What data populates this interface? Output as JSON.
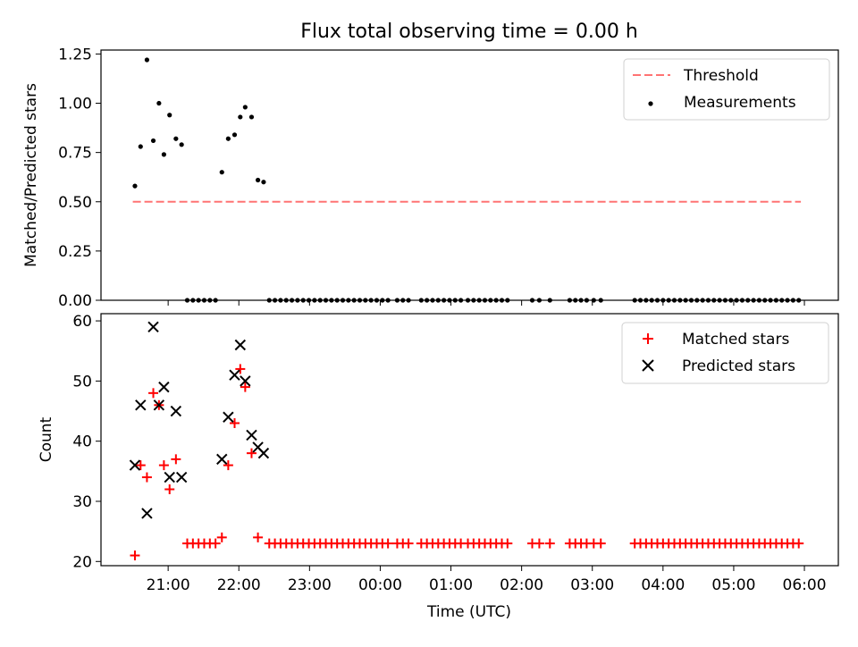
{
  "chart_data": [
    {
      "type": "scatter",
      "title": "Flux total observing time = 0.00 h",
      "xlabel": "",
      "ylabel": "Matched/Predicted stars",
      "ylim": [
        0,
        1.27
      ],
      "yticks": [
        "0.00",
        "0.25",
        "0.50",
        "0.75",
        "1.00",
        "1.25"
      ],
      "ytick_values": [
        0,
        0.25,
        0.5,
        0.75,
        1.0,
        1.25
      ],
      "threshold": {
        "name": "Threshold",
        "value": 0.5,
        "x_start": 20.5,
        "x_end": 29.95,
        "color": "#ff7373"
      },
      "series": [
        {
          "name": "Measurements",
          "color": "#000000",
          "x": [
            20.53,
            20.61,
            20.7,
            20.79,
            20.87,
            20.94,
            21.02,
            21.11,
            21.19,
            21.76,
            21.85,
            21.94,
            22.02,
            22.09,
            22.18,
            22.27,
            22.35
          ],
          "y": [
            0.58,
            0.78,
            1.22,
            0.81,
            1.0,
            0.74,
            0.94,
            0.82,
            0.79,
            0.65,
            0.82,
            0.84,
            0.93,
            0.98,
            0.93,
            0.61,
            0.6
          ]
        }
      ],
      "legend": [
        "Threshold",
        "Measurements"
      ],
      "legend_position": "top-right"
    },
    {
      "type": "scatter",
      "title": "",
      "xlabel": "Time (UTC)",
      "ylabel": "Count",
      "ylim": [
        19.3,
        61.2
      ],
      "yticks": [
        "20",
        "30",
        "40",
        "50",
        "60"
      ],
      "ytick_values": [
        20,
        30,
        40,
        50,
        60
      ],
      "series": [
        {
          "name": "Matched stars",
          "marker": "+",
          "color": "#ff0000",
          "x": [
            20.53,
            20.61,
            20.7,
            20.79,
            20.87,
            20.94,
            21.02,
            21.11,
            21.76,
            21.85,
            21.94,
            22.02,
            22.09,
            22.18,
            22.27
          ],
          "y": [
            21,
            36,
            34,
            48,
            46,
            36,
            32,
            37,
            24,
            36,
            43,
            52,
            49,
            38,
            24
          ]
        },
        {
          "name": "Predicted stars",
          "marker": "x",
          "color": "#000000",
          "x": [
            20.53,
            20.61,
            20.7,
            20.79,
            20.87,
            20.94,
            21.02,
            21.11,
            21.19,
            21.76,
            21.85,
            21.94,
            22.02,
            22.09,
            22.18,
            22.27,
            22.35
          ],
          "y": [
            36,
            46,
            28,
            59,
            46,
            49,
            34,
            45,
            34,
            37,
            44,
            51,
            56,
            50,
            41,
            39,
            38
          ]
        }
      ],
      "legend": [
        "Matched stars",
        "Predicted stars"
      ],
      "legend_position": "top-right"
    }
  ],
  "shared": {
    "xlim": [
      20.05,
      30.48
    ],
    "xticks": [
      "21:00",
      "22:00",
      "23:00",
      "00:00",
      "01:00",
      "02:00",
      "03:00",
      "04:00",
      "05:00",
      "06:00"
    ],
    "xtick_values": [
      21,
      22,
      23,
      24,
      25,
      26,
      27,
      28,
      29,
      30
    ],
    "zero_flux_times": [
      21.27,
      21.35,
      21.43,
      21.51,
      21.59,
      21.67,
      22.43,
      22.51,
      22.59,
      22.67,
      22.75,
      22.83,
      22.91,
      22.99,
      23.07,
      23.15,
      23.23,
      23.31,
      23.39,
      23.47,
      23.55,
      23.63,
      23.71,
      23.79,
      23.87,
      23.95,
      24.03,
      24.11,
      24.24,
      24.32,
      24.4,
      24.58,
      24.66,
      24.74,
      24.82,
      24.9,
      24.98,
      25.06,
      25.14,
      25.24,
      25.32,
      25.4,
      25.48,
      25.56,
      25.64,
      25.72,
      25.8,
      26.15,
      26.25,
      26.4,
      26.68,
      26.76,
      26.84,
      26.92,
      27.02,
      27.12,
      27.6,
      27.68,
      27.76,
      27.84,
      27.92,
      28.0,
      28.08,
      28.16,
      28.24,
      28.32,
      28.4,
      28.48,
      28.56,
      28.64,
      28.72,
      28.8,
      28.88,
      28.96,
      29.04,
      29.12,
      29.2,
      29.28,
      29.36,
      29.44,
      29.52,
      29.6,
      29.68,
      29.76,
      29.84,
      29.92
    ],
    "zero_matched_count": 23
  }
}
